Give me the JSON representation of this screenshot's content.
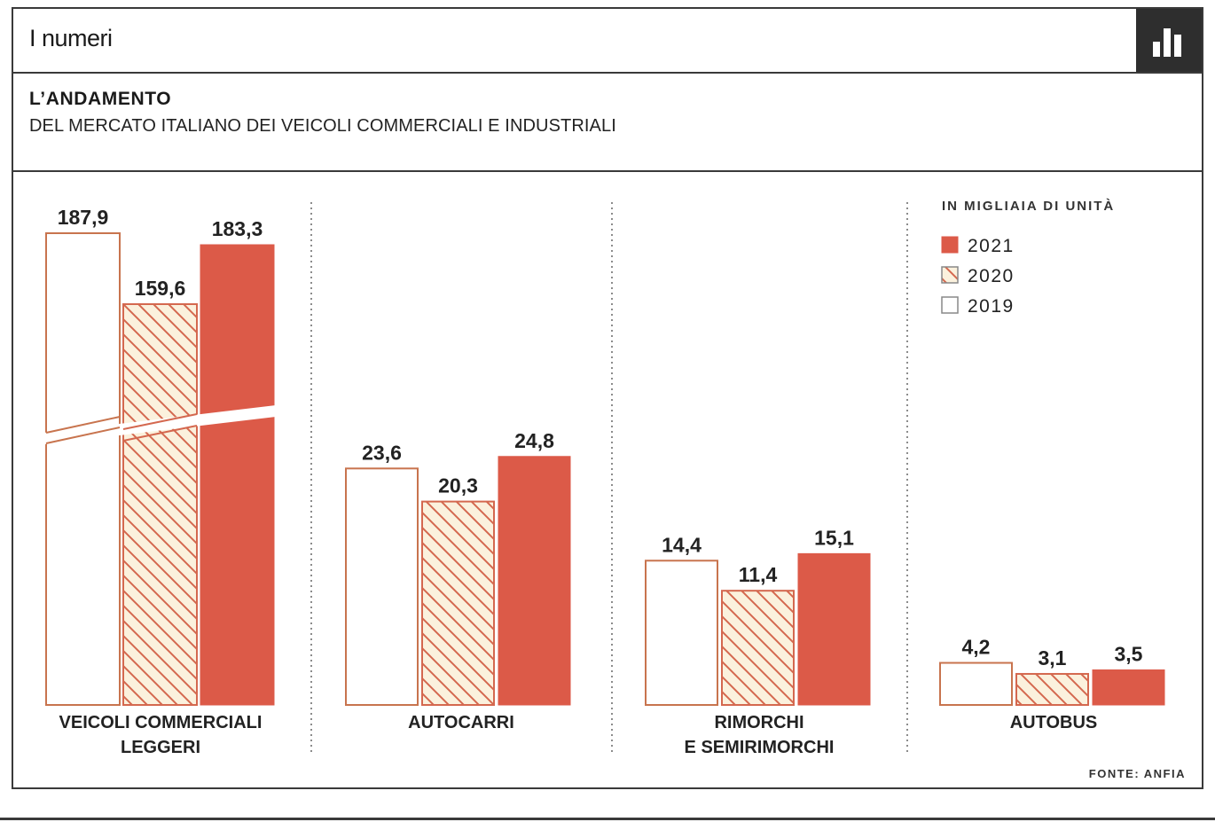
{
  "header": {
    "title": "I numeri",
    "icon": "bar-chart-icon"
  },
  "subhead": {
    "title": "L’ANDAMENTO",
    "subtitle": "DEL MERCATO ITALIANO DEI VEICOLI COMMERCIALI E INDUSTRIALI"
  },
  "colors": {
    "y2021": "#dc5a48",
    "y2020_stripe": "#d4684f",
    "y2020_fill": "#fbf1dd",
    "y2019_border": "#c8744e",
    "dark": "#2e2e2e"
  },
  "chart_data": {
    "type": "bar",
    "unit": "IN MIGLIAIA DI UNITÀ",
    "series": [
      {
        "name": "2019",
        "values": [
          187.9,
          23.6,
          14.4,
          4.2
        ],
        "labels": [
          "187,9",
          "23,6",
          "14,4",
          "4,2"
        ]
      },
      {
        "name": "2020",
        "values": [
          159.6,
          20.3,
          11.4,
          3.1
        ],
        "labels": [
          "159,6",
          "20,3",
          "11,4",
          "3,1"
        ]
      },
      {
        "name": "2021",
        "values": [
          183.3,
          24.8,
          15.1,
          3.5
        ],
        "labels": [
          "183,3",
          "24,8",
          "15,1",
          "3,5"
        ]
      }
    ],
    "categories": [
      [
        "VEICOLI COMMERCIALI",
        "LEGGERI"
      ],
      [
        "AUTOCARRI"
      ],
      [
        "RIMORCHI",
        "E SEMIRIMORCHI"
      ],
      [
        "AUTOBUS"
      ]
    ],
    "legend": {
      "title": "IN MIGLIAIA DI UNITÀ",
      "items": [
        "2021",
        "2020",
        "2019"
      ],
      "position": "top-right"
    },
    "broken_axis_category": 0,
    "source": "FONTE: ANFIA"
  }
}
